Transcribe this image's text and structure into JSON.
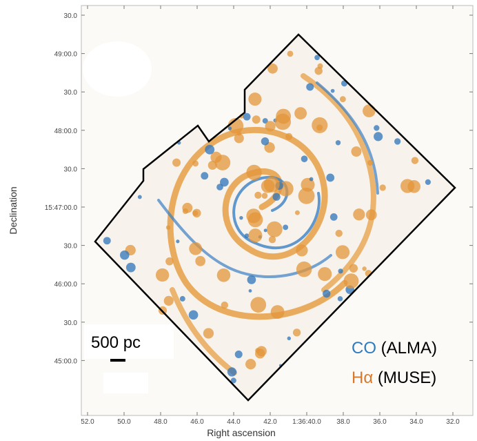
{
  "figure": {
    "y_ticks": [
      "30.0",
      "49:00.0",
      "30.0",
      "48:00.0",
      "30.0",
      "15:47:00.0",
      "30.0",
      "46:00.0",
      "30.0",
      "45:00.0"
    ],
    "x_ticks": [
      "52.0",
      "50.0",
      "48.0",
      "46.0",
      "44.0",
      "42.0",
      "1:36:40.0",
      "38.0",
      "36.0",
      "34.0",
      "32.0"
    ],
    "x_label": "Right ascension",
    "y_label": "Declination",
    "scale_bar": "500 pc",
    "legend": [
      {
        "symbol": "CO",
        "label": "(ALMA)"
      },
      {
        "symbol": "Hα",
        "label": "(MUSE)"
      }
    ]
  }
}
